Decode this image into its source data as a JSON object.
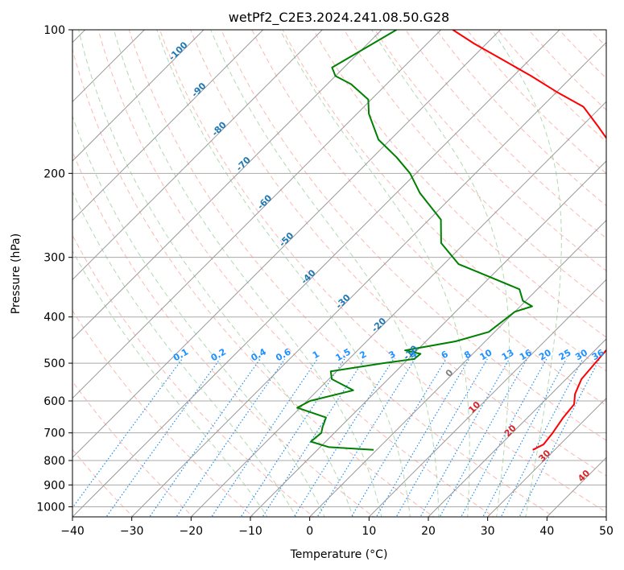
{
  "chart_data": {
    "type": "line",
    "title": "wetPf2_C2E3.2024.241.08.50.G28",
    "xlabel": "Temperature (°C)",
    "ylabel": "Pressure (hPa)",
    "xlim": [
      -40,
      50
    ],
    "ylim": [
      1050,
      100
    ],
    "y_scale": "log",
    "x_ticks": [
      -40,
      -30,
      -20,
      -10,
      0,
      10,
      20,
      30,
      40,
      50
    ],
    "y_ticks": [
      1000,
      900,
      800,
      700,
      600,
      500,
      400,
      300,
      200,
      100
    ],
    "grid": true,
    "series": [
      {
        "key": "temperature",
        "color": "#ff0000",
        "points": [
          [
            760,
            26.3
          ],
          [
            740,
            27.2
          ],
          [
            700,
            26.8
          ],
          [
            650,
            26.0
          ],
          [
            610,
            25.6
          ],
          [
            580,
            24.0
          ],
          [
            540,
            22.6
          ],
          [
            500,
            22.2
          ],
          [
            460,
            21.8
          ],
          [
            430,
            20.8
          ],
          [
            400,
            19.2
          ],
          [
            370,
            17.5
          ],
          [
            340,
            16.3
          ],
          [
            310,
            13.5
          ],
          [
            280,
            9.0
          ],
          [
            250,
            4.5
          ],
          [
            220,
            0.2
          ],
          [
            200,
            -4.5
          ],
          [
            180,
            -10.0
          ],
          [
            160,
            -17.0
          ],
          [
            145,
            -23.0
          ],
          [
            135,
            -30.0
          ],
          [
            125,
            -37.0
          ],
          [
            115,
            -45.0
          ],
          [
            107,
            -52.0
          ],
          [
            100,
            -58.0
          ]
        ]
      },
      {
        "key": "dewpoint",
        "color": "#008000",
        "points": [
          [
            760,
            -0.5
          ],
          [
            750,
            -8.5
          ],
          [
            730,
            -12.5
          ],
          [
            700,
            -12.2
          ],
          [
            680,
            -13.0
          ],
          [
            650,
            -14.0
          ],
          [
            620,
            -20.5
          ],
          [
            600,
            -19.5
          ],
          [
            570,
            -14.0
          ],
          [
            540,
            -19.5
          ],
          [
            520,
            -21.0
          ],
          [
            500,
            -13.5
          ],
          [
            490,
            -9.0
          ],
          [
            478,
            -8.8
          ],
          [
            470,
            -12.0
          ],
          [
            450,
            -5.0
          ],
          [
            430,
            -1.0
          ],
          [
            410,
            -0.5
          ],
          [
            390,
            0.0
          ],
          [
            380,
            2.0
          ],
          [
            370,
            -0.5
          ],
          [
            350,
            -3.0
          ],
          [
            330,
            -10.0
          ],
          [
            310,
            -17.5
          ],
          [
            280,
            -24.0
          ],
          [
            250,
            -28.0
          ],
          [
            220,
            -36.0
          ],
          [
            200,
            -41.0
          ],
          [
            185,
            -46.0
          ],
          [
            170,
            -52.0
          ],
          [
            150,
            -58.0
          ],
          [
            140,
            -60.5
          ],
          [
            130,
            -66.0
          ],
          [
            125,
            -70.0
          ],
          [
            120,
            -72.0
          ],
          [
            113,
            -70.5
          ],
          [
            100,
            -67.5
          ]
        ]
      }
    ],
    "dry_adiabats_K": [
      230,
      240,
      250,
      260,
      270,
      280,
      290,
      300,
      310,
      320,
      330,
      340,
      350,
      360,
      370,
      380,
      390,
      400,
      410,
      420,
      430,
      440,
      450,
      460,
      470,
      480,
      490,
      500
    ],
    "moist_adiabats_C": [
      -10,
      -5,
      0,
      5,
      10,
      15,
      20,
      25,
      30,
      35
    ],
    "mixing_ratio_g_per_kg": [
      0.1,
      0.2,
      0.4,
      0.6,
      1,
      1.5,
      2,
      3,
      4,
      6,
      8,
      10,
      13,
      16,
      20,
      25,
      30,
      36
    ],
    "isotherm_labels": [
      {
        "text": "-100",
        "value": -100,
        "color": "#1f77b4"
      },
      {
        "text": "-90",
        "value": -90,
        "color": "#1f77b4"
      },
      {
        "text": "-80",
        "value": -80,
        "color": "#1f77b4"
      },
      {
        "text": "-70",
        "value": -70,
        "color": "#1f77b4"
      },
      {
        "text": "-60",
        "value": -60,
        "color": "#1f77b4"
      },
      {
        "text": "-50",
        "value": -50,
        "color": "#1f77b4"
      },
      {
        "text": "-40",
        "value": -40,
        "color": "#1f77b4"
      },
      {
        "text": "-30",
        "value": -30,
        "color": "#1f77b4"
      },
      {
        "text": "-20",
        "value": -20,
        "color": "#1f77b4"
      },
      {
        "text": "-10",
        "value": -10,
        "color": "#1f77b4"
      },
      {
        "text": "0",
        "value": 0,
        "color": "#808080"
      },
      {
        "text": "10",
        "value": 10,
        "color": "#d62728"
      },
      {
        "text": "20",
        "value": 20,
        "color": "#d62728"
      },
      {
        "text": "30",
        "value": 30,
        "color": "#d62728"
      },
      {
        "text": "40",
        "value": 40,
        "color": "#d62728"
      }
    ],
    "isotherm_label_pressures": {
      "-100": 112,
      "-90": 135,
      "-80": 163,
      "-70": 193,
      "-60": 232,
      "-50": 278,
      "-40": 333,
      "-30": 375,
      "-20": 420,
      "-10": 480,
      "0": 530,
      "10": 625,
      "20": 700,
      "30": 790,
      "40": 870
    },
    "mixing_ratio_label_pressure": 490,
    "colors": {
      "temperature": "#ff0000",
      "dewpoint": "#008000",
      "grid": "#aaaaaa",
      "isotherm": "#999999",
      "dry_adiabat": "#fa8072",
      "moist_adiabat": "#7fbf7f",
      "mixing_ratio": "#1f8ff0",
      "mixing_label": "#1e90ff",
      "isotherm_label": "#1f77b4"
    }
  }
}
